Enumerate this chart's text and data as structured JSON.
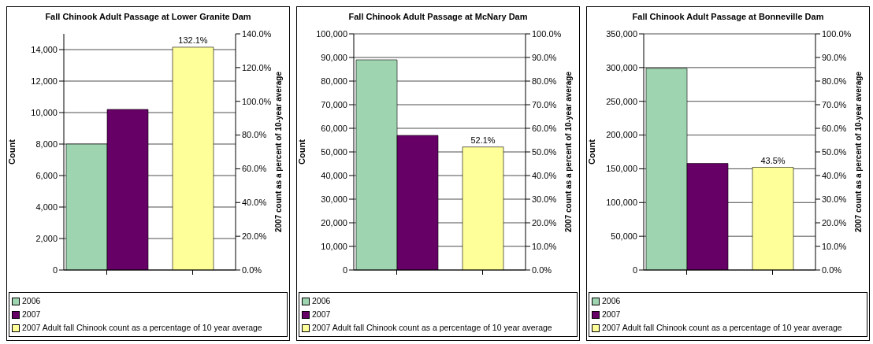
{
  "chart_data": [
    {
      "type": "bar",
      "title": "Fall Chinook Adult Passage at Lower Granite Dam",
      "ylabel": "Count",
      "y2label": "2007 count as a percent of 10-year  average",
      "categories": [
        null,
        null
      ],
      "series": [
        {
          "name": "2006",
          "color": "#9fd4b0",
          "values": [
            8000,
            null
          ]
        },
        {
          "name": "2007",
          "color": "#660066",
          "values": [
            10200,
            null
          ]
        },
        {
          "name": "2007 Adult fall Chinook count as a percentage of 10 year average",
          "color": "#ffff99",
          "values": [
            null,
            132.1
          ],
          "axis": "y2",
          "value_labels": [
            null,
            "132.1%"
          ]
        }
      ],
      "ylim": [
        0,
        15000
      ],
      "yticks": [
        {
          "value": 0,
          "label": "0"
        },
        {
          "value": 2000,
          "label": "2,000"
        },
        {
          "value": 4000,
          "label": "4,000"
        },
        {
          "value": 6000,
          "label": "6,000"
        },
        {
          "value": 8000,
          "label": "8,000"
        },
        {
          "value": 10000,
          "label": "10,000"
        },
        {
          "value": 12000,
          "label": "12,000"
        },
        {
          "value": 14000,
          "label": "14,000"
        }
      ],
      "y2lim": [
        0,
        140
      ],
      "y2ticks": [
        {
          "value": 0,
          "label": "0.0%"
        },
        {
          "value": 20,
          "label": "20.0%"
        },
        {
          "value": 40,
          "label": "40.0%"
        },
        {
          "value": 60,
          "label": "60.0%"
        },
        {
          "value": 80,
          "label": "80.0%"
        },
        {
          "value": 100,
          "label": "100.0%"
        },
        {
          "value": 120,
          "label": "120.0%"
        },
        {
          "value": 140,
          "label": "140.0%"
        }
      ],
      "grid": "y",
      "legend": "bottom"
    },
    {
      "type": "bar",
      "title": "Fall Chinook Adult Passage at McNary Dam",
      "ylabel": "Count",
      "y2label": "2007 count as a percent of 10-year  average",
      "categories": [
        null,
        null
      ],
      "series": [
        {
          "name": "2006",
          "color": "#9fd4b0",
          "values": [
            89000,
            null
          ]
        },
        {
          "name": "2007",
          "color": "#660066",
          "values": [
            57000,
            null
          ]
        },
        {
          "name": "2007 Adult fall Chinook count as a percentage of 10 year average",
          "color": "#ffff99",
          "values": [
            null,
            52.1
          ],
          "axis": "y2",
          "value_labels": [
            null,
            "52.1%"
          ]
        }
      ],
      "ylim": [
        0,
        100000
      ],
      "yticks": [
        {
          "value": 0,
          "label": "0"
        },
        {
          "value": 10000,
          "label": "10,000"
        },
        {
          "value": 20000,
          "label": "20,000"
        },
        {
          "value": 30000,
          "label": "30,000"
        },
        {
          "value": 40000,
          "label": "40,000"
        },
        {
          "value": 50000,
          "label": "50,000"
        },
        {
          "value": 60000,
          "label": "60,000"
        },
        {
          "value": 70000,
          "label": "70,000"
        },
        {
          "value": 80000,
          "label": "80,000"
        },
        {
          "value": 90000,
          "label": "90,000"
        },
        {
          "value": 100000,
          "label": "100,000"
        }
      ],
      "y2lim": [
        0,
        100
      ],
      "y2ticks": [
        {
          "value": 0,
          "label": "0.0%"
        },
        {
          "value": 10,
          "label": "10.0%"
        },
        {
          "value": 20,
          "label": "20.0%"
        },
        {
          "value": 30,
          "label": "30.0%"
        },
        {
          "value": 40,
          "label": "40.0%"
        },
        {
          "value": 50,
          "label": "50.0%"
        },
        {
          "value": 60,
          "label": "60.0%"
        },
        {
          "value": 70,
          "label": "70.0%"
        },
        {
          "value": 80,
          "label": "80.0%"
        },
        {
          "value": 90,
          "label": "90.0%"
        },
        {
          "value": 100,
          "label": "100.0%"
        }
      ],
      "grid": "y",
      "legend": "bottom"
    },
    {
      "type": "bar",
      "title": "Fall Chinook Adult Passage at Bonneville Dam",
      "ylabel": "Count",
      "y2label": "2007 count as a percent of 10-year average",
      "categories": [
        null,
        null
      ],
      "series": [
        {
          "name": "2006",
          "color": "#9fd4b0",
          "values": [
            299000,
            null
          ]
        },
        {
          "name": "2007",
          "color": "#660066",
          "values": [
            158000,
            null
          ]
        },
        {
          "name": "2007 Adult fall Chinook count as a percentage of 10 year average",
          "color": "#ffff99",
          "values": [
            null,
            43.5
          ],
          "axis": "y2",
          "value_labels": [
            null,
            "43.5%"
          ]
        }
      ],
      "ylim": [
        0,
        350000
      ],
      "yticks": [
        {
          "value": 0,
          "label": "0"
        },
        {
          "value": 50000,
          "label": "50,000"
        },
        {
          "value": 100000,
          "label": "100,000"
        },
        {
          "value": 150000,
          "label": "150,000"
        },
        {
          "value": 200000,
          "label": "200,000"
        },
        {
          "value": 250000,
          "label": "250,000"
        },
        {
          "value": 300000,
          "label": "300,000"
        },
        {
          "value": 350000,
          "label": "350,000"
        }
      ],
      "y2lim": [
        0,
        100
      ],
      "y2ticks": [
        {
          "value": 0,
          "label": "0.0%"
        },
        {
          "value": 10,
          "label": "10.0%"
        },
        {
          "value": 20,
          "label": "20.0%"
        },
        {
          "value": 30,
          "label": "30.0%"
        },
        {
          "value": 40,
          "label": "40.0%"
        },
        {
          "value": 50,
          "label": "50.0%"
        },
        {
          "value": 60,
          "label": "60.0%"
        },
        {
          "value": 70,
          "label": "70.0%"
        },
        {
          "value": 80,
          "label": "80.0%"
        },
        {
          "value": 90,
          "label": "90.0%"
        },
        {
          "value": 100,
          "label": "100.0%"
        }
      ],
      "grid": "y",
      "legend": "bottom"
    }
  ]
}
